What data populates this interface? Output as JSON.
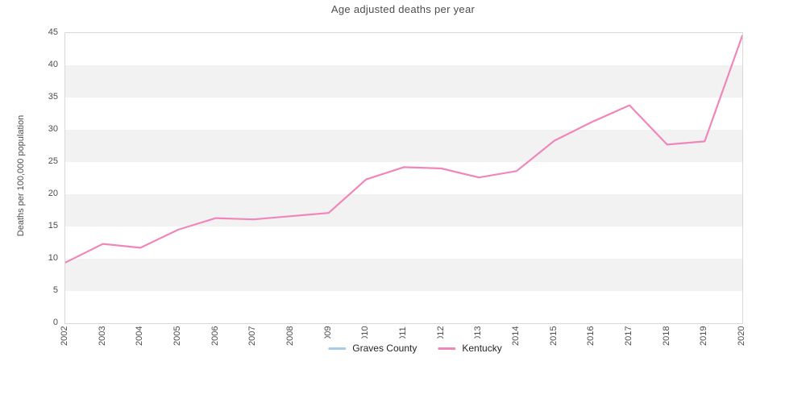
{
  "chart_data": {
    "type": "line",
    "title": "Age adjusted deaths per year",
    "xlabel": "",
    "ylabel": "Deaths per 100,000 population",
    "x": [
      2002,
      2003,
      2004,
      2005,
      2006,
      2007,
      2008,
      2009,
      2010,
      2011,
      2012,
      2013,
      2014,
      2015,
      2016,
      2017,
      2018,
      2019,
      2020
    ],
    "series": [
      {
        "name": "Graves County",
        "color": "#a9cde8",
        "values": []
      },
      {
        "name": "Kentucky",
        "color": "#ef87ba",
        "values": [
          9.4,
          12.3,
          11.7,
          14.5,
          16.3,
          16.1,
          16.6,
          17.1,
          22.3,
          24.2,
          24.0,
          22.6,
          23.6,
          28.3,
          31.2,
          33.8,
          27.7,
          28.2,
          44.6
        ]
      }
    ],
    "ylim": [
      0,
      45
    ],
    "y_ticks": [
      0,
      5,
      10,
      15,
      20,
      25,
      30,
      35,
      40,
      45
    ],
    "legend_position": "bottom-center",
    "grid": "horizontal-bands",
    "band_color": "#f2f2f2",
    "border_color": "#d8d8d8",
    "text_color": "#4d4d4d"
  }
}
